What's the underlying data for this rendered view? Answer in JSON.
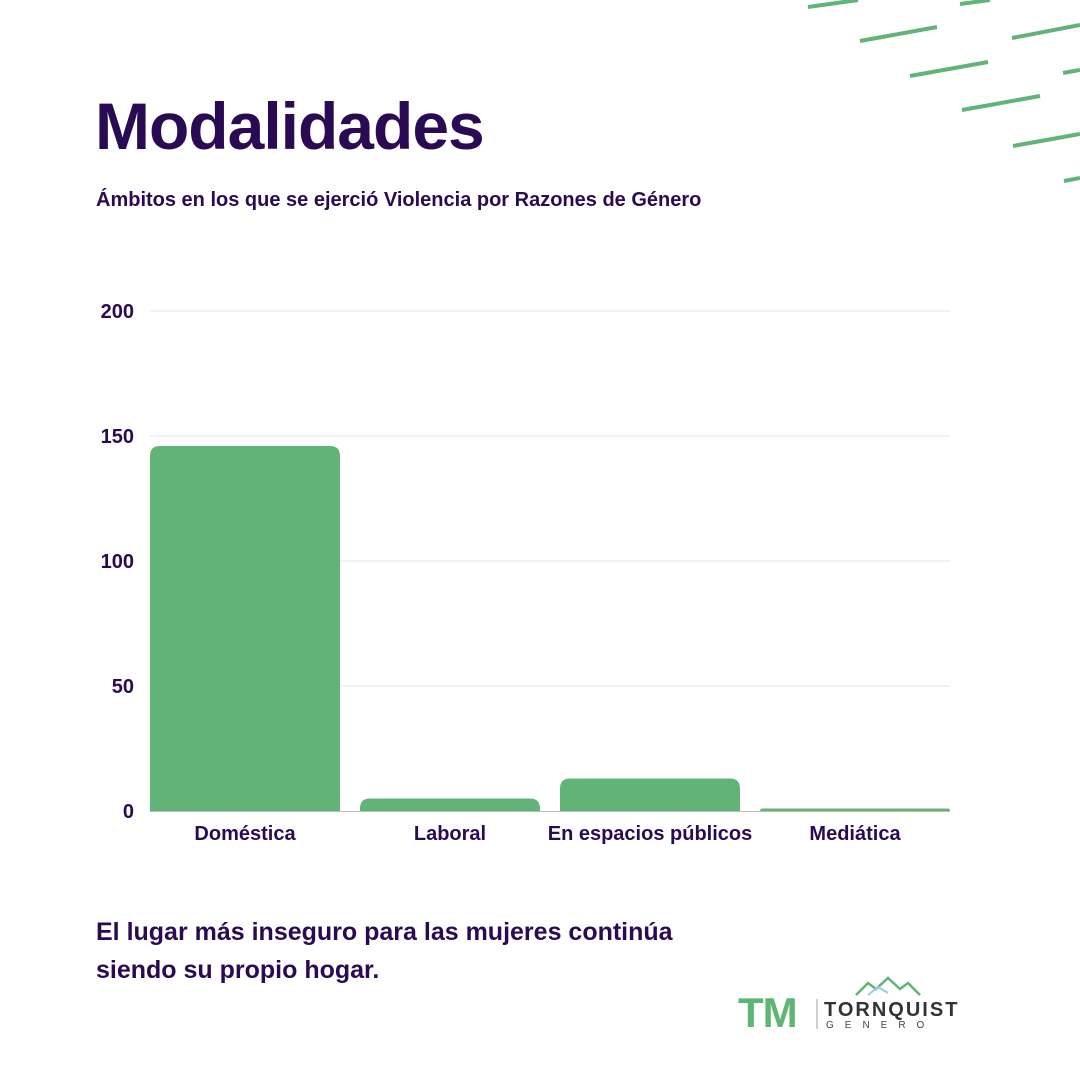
{
  "header": {
    "title": "Modalidades",
    "subtitle": "Ámbitos en los que se ejerció Violencia por Razones de Género"
  },
  "chart_data": {
    "type": "bar",
    "categories": [
      "Doméstica",
      "Laboral",
      "En espacios públicos",
      "Mediática"
    ],
    "values": [
      146,
      5,
      13,
      1
    ],
    "yticks": [
      "0",
      "50",
      "100",
      "150",
      "200"
    ],
    "ylim": [
      0,
      200
    ],
    "grid": true,
    "bar_color": "#62b378"
  },
  "footer": {
    "text": "El lugar más inseguro para las mujeres continúa siendo su propio hogar."
  },
  "logo": {
    "mark": "TM",
    "name": "TORNQUIST",
    "sub": "GENERO"
  },
  "colors": {
    "accent": "#62b378",
    "text": "#2a0a52"
  }
}
